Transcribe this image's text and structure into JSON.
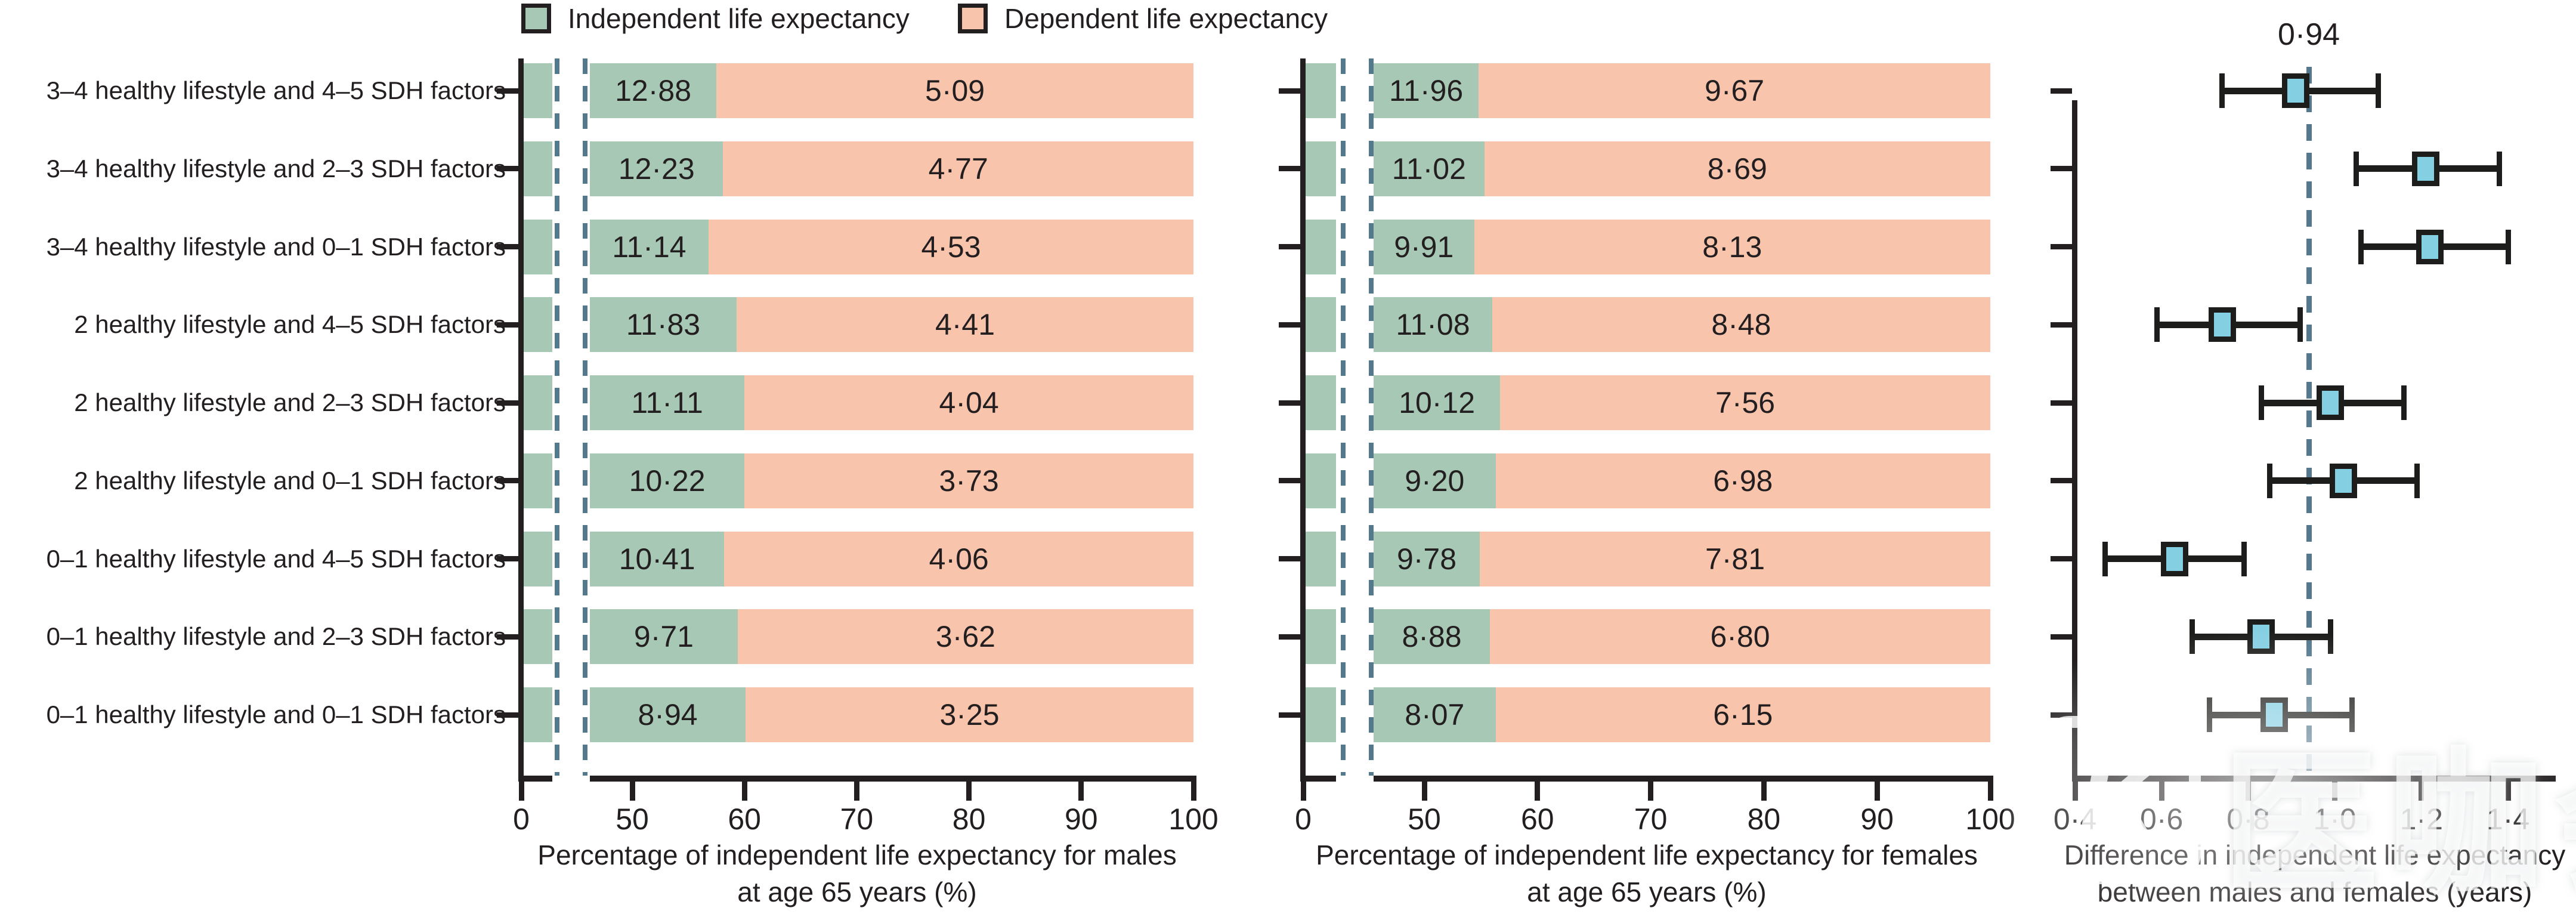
{
  "page": {
    "legend": {
      "independent": "Independent life expectancy",
      "dependent": "Dependent life expectancy"
    },
    "watermark": {
      "logo_glyph": "K",
      "text": "医咖会"
    }
  },
  "chart_data": {
    "type": "bar",
    "subtype": "percent-stacked horizontal bars with broken axis + forest plot",
    "categories": [
      "3–4 healthy lifestyle and 4–5 SDH factors",
      "3–4 healthy lifestyle and 2–3 SDH factors",
      "3–4 healthy lifestyle and 0–1 SDH factors",
      "2 healthy lifestyle and 4–5 SDH factors",
      "2 healthy lifestyle and 2–3 SDH factors",
      "2 healthy lifestyle and 0–1 SDH factors",
      "0–1 healthy lifestyle and 4–5 SDH factors",
      "0–1 healthy lifestyle and 2–3 SDH factors",
      "0–1 healthy lifestyle and 0–1 SDH factors"
    ],
    "colors": {
      "independent": "#a7c8b4",
      "dependent": "#f9c4ac",
      "forest_marker": "#85cfe2",
      "dashed_line": "#54788c",
      "ink": "#231f20"
    },
    "panels": [
      {
        "id": "males",
        "title_line1": "Percentage of independent life expectancy for males",
        "title_line2": "at age 65 years (%)",
        "x_tick_labels": [
          "0",
          "50",
          "60",
          "70",
          "80",
          "90",
          "100"
        ],
        "x_tick_values": [
          0,
          50,
          60,
          70,
          80,
          90,
          100
        ],
        "axis_break_between": [
          0,
          50
        ],
        "series": [
          {
            "name": "Independent life expectancy",
            "values": [
              12.88,
              12.23,
              11.14,
              11.83,
              11.11,
              10.22,
              10.41,
              9.71,
              8.94
            ]
          },
          {
            "name": "Dependent life expectancy",
            "values": [
              5.09,
              4.77,
              4.53,
              4.41,
              4.04,
              3.73,
              4.06,
              3.62,
              3.25
            ]
          }
        ],
        "drawn_pct_independent": [
          57.5,
          58.1,
          56.8,
          59.3,
          60.0,
          60.0,
          58.2,
          59.4,
          60.1
        ]
      },
      {
        "id": "females",
        "title_line1": "Percentage of independent life expectancy for females",
        "title_line2": "at age 65 years (%)",
        "x_tick_labels": [
          "0",
          "50",
          "60",
          "70",
          "80",
          "90",
          "100"
        ],
        "x_tick_values": [
          0,
          50,
          60,
          70,
          80,
          90,
          100
        ],
        "axis_break_between": [
          0,
          50
        ],
        "series": [
          {
            "name": "Independent life expectancy",
            "values": [
              11.96,
              11.02,
              9.91,
              11.08,
              10.12,
              9.2,
              9.78,
              8.88,
              8.07
            ]
          },
          {
            "name": "Dependent life expectancy",
            "values": [
              9.67,
              8.69,
              8.13,
              8.48,
              7.56,
              6.98,
              7.81,
              6.8,
              6.15
            ]
          }
        ],
        "drawn_pct_independent": [
          54.8,
          55.3,
          54.4,
          56.0,
          56.7,
          56.3,
          54.9,
          55.8,
          56.3
        ]
      }
    ],
    "forest": {
      "title_line1": "Difference in independent life expectancy",
      "title_line2": "between males and females (years)",
      "x_tick_labels": [
        "0·4",
        "0·6",
        "0·8",
        "1·0",
        "1·2",
        "1·4"
      ],
      "x_tick_values": [
        0.4,
        0.6,
        0.8,
        1.0,
        1.2,
        1.4
      ],
      "xlim": [
        0.4,
        1.5
      ],
      "reference_value": 0.94,
      "reference_label": "0·94",
      "values": [
        0.91,
        1.21,
        1.22,
        0.74,
        0.99,
        1.02,
        0.63,
        0.83,
        0.86
      ],
      "ci_low": [
        0.74,
        1.05,
        1.06,
        0.59,
        0.83,
        0.85,
        0.47,
        0.67,
        0.71
      ],
      "ci_high": [
        1.1,
        1.38,
        1.4,
        0.92,
        1.16,
        1.19,
        0.79,
        0.99,
        1.04
      ]
    },
    "layout_hints": {
      "grid": false,
      "legend_position": "top",
      "decimal_separator": "·"
    }
  }
}
